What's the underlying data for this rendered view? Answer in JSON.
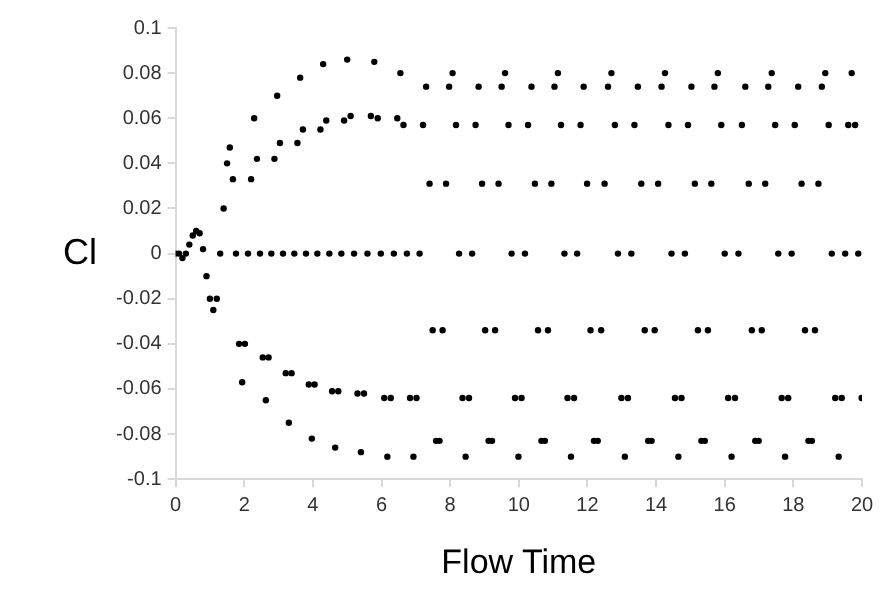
{
  "chart_data": {
    "type": "scatter",
    "xlabel": "Flow Time",
    "ylabel": "Cl",
    "xlim": [
      0,
      20
    ],
    "xticks": [
      0,
      2,
      4,
      6,
      8,
      10,
      12,
      14,
      16,
      18,
      20
    ],
    "ylim": [
      -0.1,
      0.1
    ],
    "yticks": [
      -0.1,
      -0.08,
      -0.06,
      -0.04,
      -0.02,
      0,
      0.02,
      0.04,
      0.06,
      0.08,
      0.1
    ],
    "grid": false,
    "legend": false,
    "marker": "circle",
    "series": [
      {
        "color": "#000000",
        "x": [
          0,
          0.1,
          0.2,
          0.3,
          0.4,
          0.5,
          0.6,
          0.7,
          0.8,
          0.9,
          1.0,
          1.1,
          1.2,
          1.3,
          1.4,
          1.5,
          1.58,
          1.67,
          1.76,
          1.85,
          1.94,
          2.02,
          2.11,
          2.2,
          2.29,
          2.37,
          2.46,
          2.54,
          2.63,
          2.71,
          2.79,
          2.88,
          2.96,
          3.04,
          3.13,
          3.21,
          3.3,
          3.38,
          3.46,
          3.55,
          3.63,
          3.71,
          3.8,
          3.88,
          3.97,
          4.05,
          4.13,
          4.22,
          4.3,
          4.39,
          4.48,
          4.56,
          4.65,
          4.74,
          4.83,
          4.91,
          5.0,
          5.1,
          5.2,
          5.3,
          5.4,
          5.49,
          5.59,
          5.69,
          5.79,
          5.89,
          5.98,
          6.08,
          6.17,
          6.27,
          6.36,
          6.46,
          6.55,
          6.64,
          6.74,
          6.83,
          6.93,
          7.02,
          7.11,
          7.21,
          7.3,
          7.4,
          7.49,
          7.59,
          7.69,
          7.78,
          7.88,
          7.97,
          8.07,
          8.17,
          8.26,
          8.36,
          8.45,
          8.55,
          8.64,
          8.74,
          8.83,
          8.93,
          9.02,
          9.12,
          9.22,
          9.31,
          9.41,
          9.5,
          9.6,
          9.7,
          9.79,
          9.89,
          9.99,
          10.08,
          10.18,
          10.27,
          10.37,
          10.47,
          10.56,
          10.66,
          10.76,
          10.85,
          10.95,
          11.04,
          11.14,
          11.23,
          11.33,
          11.42,
          11.52,
          11.61,
          11.7,
          11.8,
          11.89,
          11.99,
          12.09,
          12.19,
          12.3,
          12.4,
          12.5,
          12.6,
          12.7,
          12.8,
          12.89,
          12.99,
          13.09,
          13.18,
          13.28,
          13.37,
          13.47,
          13.57,
          13.67,
          13.77,
          13.87,
          13.96,
          14.06,
          14.16,
          14.26,
          14.36,
          14.45,
          14.55,
          14.65,
          14.74,
          14.84,
          14.93,
          15.03,
          15.13,
          15.22,
          15.32,
          15.42,
          15.51,
          15.61,
          15.7,
          15.8,
          15.9,
          16.0,
          16.1,
          16.2,
          16.3,
          16.4,
          16.5,
          16.6,
          16.7,
          16.79,
          16.89,
          16.99,
          17.08,
          17.18,
          17.27,
          17.37,
          17.47,
          17.56,
          17.66,
          17.76,
          17.85,
          17.95,
          18.04,
          18.14,
          18.24,
          18.34,
          18.44,
          18.54,
          18.63,
          18.73,
          18.83,
          18.93,
          19.03,
          19.12,
          19.22,
          19.32,
          19.41,
          19.51,
          19.6,
          19.7,
          19.8,
          19.89,
          19.99
        ],
        "values": [
          0,
          0,
          -0.002,
          0,
          0.004,
          0.008,
          0.01,
          0.009,
          0.002,
          -0.01,
          -0.02,
          -0.025,
          -0.02,
          0,
          0.02,
          0.04,
          0.047,
          0.033,
          0,
          -0.04,
          -0.057,
          -0.04,
          0,
          0.033,
          0.06,
          0.042,
          0,
          -0.046,
          -0.065,
          -0.046,
          0,
          0.042,
          0.07,
          0.049,
          0,
          -0.053,
          -0.075,
          -0.053,
          0,
          0.049,
          0.078,
          0.055,
          0,
          -0.058,
          -0.082,
          -0.058,
          0,
          0.055,
          0.084,
          0.059,
          0,
          -0.061,
          -0.086,
          -0.061,
          0,
          0.059,
          0.086,
          0.061,
          0,
          -0.062,
          -0.088,
          -0.062,
          0,
          0.061,
          0.085,
          0.06,
          0,
          -0.064,
          -0.09,
          -0.064,
          0,
          0.06,
          0.08,
          0.057,
          0,
          -0.064,
          -0.09,
          -0.064,
          0,
          0.057,
          0.074,
          0.031,
          -0.034,
          -0.083,
          -0.083,
          -0.034,
          0.031,
          0.074,
          0.08,
          0.057,
          0,
          -0.064,
          -0.09,
          -0.064,
          0,
          0.057,
          0.074,
          0.031,
          -0.034,
          -0.083,
          -0.083,
          -0.034,
          0.031,
          0.074,
          0.08,
          0.057,
          0,
          -0.064,
          -0.09,
          -0.064,
          0,
          0.057,
          0.074,
          0.031,
          -0.034,
          -0.083,
          -0.083,
          -0.034,
          0.031,
          0.074,
          0.08,
          0.057,
          0,
          -0.064,
          -0.09,
          -0.064,
          0,
          0.057,
          0.074,
          0.031,
          -0.034,
          -0.083,
          -0.083,
          -0.034,
          0.031,
          0.074,
          0.08,
          0.057,
          0,
          -0.064,
          -0.09,
          -0.064,
          0,
          0.057,
          0.074,
          0.031,
          -0.034,
          -0.083,
          -0.083,
          -0.034,
          0.031,
          0.074,
          0.08,
          0.057,
          0,
          -0.064,
          -0.09,
          -0.064,
          0,
          0.057,
          0.074,
          0.031,
          -0.034,
          -0.083,
          -0.083,
          -0.034,
          0.031,
          0.074,
          0.08,
          0.057,
          0,
          -0.064,
          -0.09,
          -0.064,
          0,
          0.057,
          0.074,
          0.031,
          -0.034,
          -0.083,
          -0.083,
          -0.034,
          0.031,
          0.074,
          0.08,
          0.057,
          0,
          -0.064,
          -0.09,
          -0.064,
          0,
          0.057,
          0.074,
          0.031,
          -0.034,
          -0.083,
          -0.083,
          -0.034,
          0.031,
          0.074,
          0.08,
          0.057,
          0,
          -0.064,
          -0.09,
          -0.064,
          0,
          0.057,
          0.08,
          0.057,
          0,
          -0.064
        ]
      }
    ]
  }
}
